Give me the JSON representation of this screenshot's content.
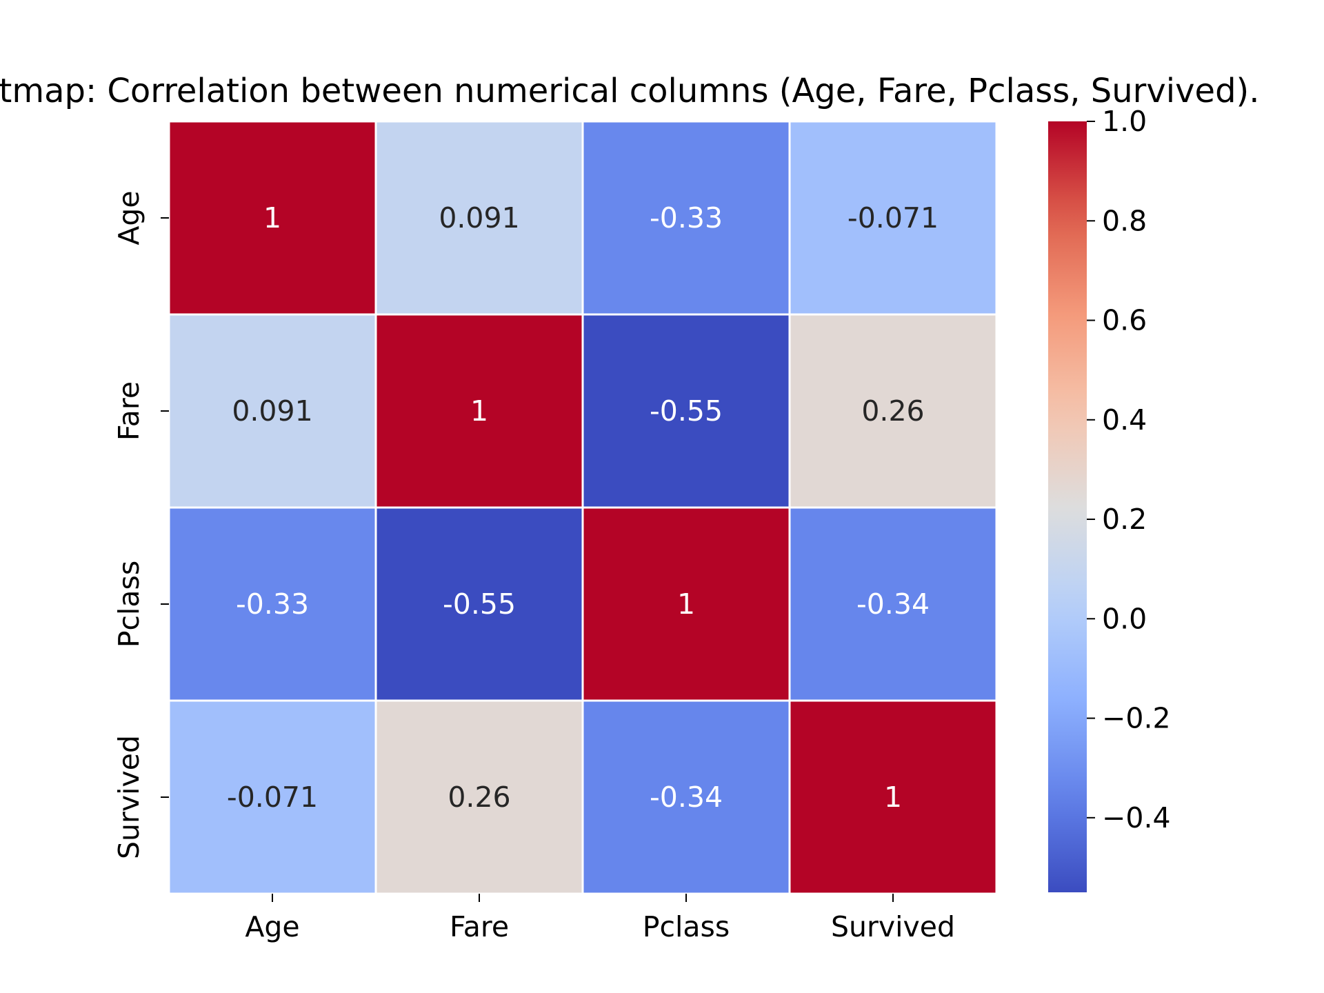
{
  "chart_data": {
    "type": "heatmap",
    "title": "Heatmap: Correlation between numerical columns (Age, Fare, Pclass, Survived).",
    "x_categories": [
      "Age",
      "Fare",
      "Pclass",
      "Survived"
    ],
    "y_categories": [
      "Age",
      "Fare",
      "Pclass",
      "Survived"
    ],
    "values": [
      [
        1,
        0.091,
        -0.33,
        -0.071
      ],
      [
        0.091,
        1,
        -0.55,
        0.26
      ],
      [
        -0.33,
        -0.55,
        1,
        -0.34
      ],
      [
        -0.071,
        0.26,
        -0.34,
        1
      ]
    ],
    "cell_labels": [
      [
        "1",
        "0.091",
        "-0.33",
        "-0.071"
      ],
      [
        "0.091",
        "1",
        "-0.55",
        "0.26"
      ],
      [
        "-0.33",
        "-0.55",
        "1",
        "-0.34"
      ],
      [
        "-0.071",
        "0.26",
        "-0.34",
        "1"
      ]
    ],
    "colormap": "coolwarm",
    "colorbar": {
      "vmin": -0.55,
      "vmax": 1.0,
      "ticks": [
        1.0,
        0.8,
        0.6,
        0.4,
        0.2,
        0.0,
        -0.2,
        -0.4
      ],
      "tick_labels": [
        "1.0",
        "0.8",
        "0.6",
        "0.4",
        "0.2",
        "0.0",
        "−0.2",
        "−0.4"
      ]
    },
    "colors": {
      "cell_border": "#ffffff",
      "text_light": "#ffffff",
      "text_dark": "#262626"
    }
  }
}
